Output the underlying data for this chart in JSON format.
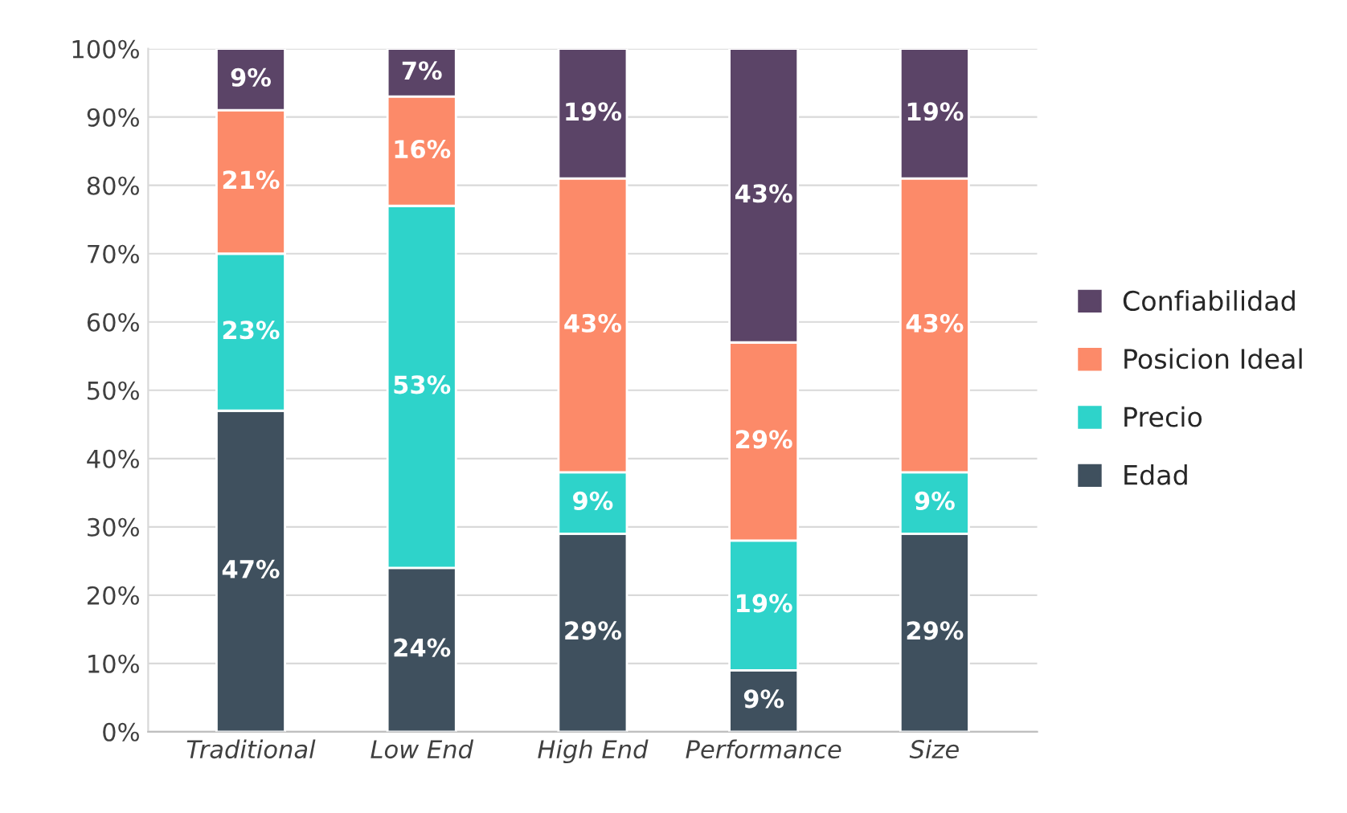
{
  "chart_data": {
    "type": "bar",
    "stacked": true,
    "categories": [
      "Traditional",
      "Low End",
      "High End",
      "Performance",
      "Size"
    ],
    "series": [
      {
        "name": "Edad",
        "color": "#3f505e",
        "values": [
          47,
          24,
          29,
          9,
          29
        ],
        "value_labels": [
          "47%",
          "24%",
          "29%",
          "9%",
          "29%"
        ]
      },
      {
        "name": "Precio",
        "color": "#2ed3ca",
        "values": [
          23,
          53,
          9,
          19,
          9
        ],
        "value_labels": [
          "23%",
          "53%",
          "9%",
          "19%",
          "9%"
        ]
      },
      {
        "name": "Posicion Ideal",
        "color": "#fc8a69",
        "values": [
          21,
          16,
          43,
          29,
          43
        ],
        "value_labels": [
          "21%",
          "16%",
          "43%",
          "29%",
          "43%"
        ]
      },
      {
        "name": "Confiabilidad",
        "color": "#5b4467",
        "values": [
          9,
          7,
          19,
          43,
          19
        ],
        "value_labels": [
          "9%",
          "7%",
          "19%",
          "43%",
          "19%"
        ]
      }
    ],
    "ylim": [
      0,
      100
    ],
    "yticks": [
      {
        "value": 0,
        "label": "0%"
      },
      {
        "value": 10,
        "label": "10%"
      },
      {
        "value": 20,
        "label": "20%"
      },
      {
        "value": 30,
        "label": "30%"
      },
      {
        "value": 40,
        "label": "40%"
      },
      {
        "value": 50,
        "label": "50%"
      },
      {
        "value": 60,
        "label": "60%"
      },
      {
        "value": 70,
        "label": "70%"
      },
      {
        "value": 80,
        "label": "80%"
      },
      {
        "value": 90,
        "label": "90%"
      },
      {
        "value": 100,
        "label": "100%"
      }
    ],
    "grid": "y",
    "legend": "right"
  }
}
